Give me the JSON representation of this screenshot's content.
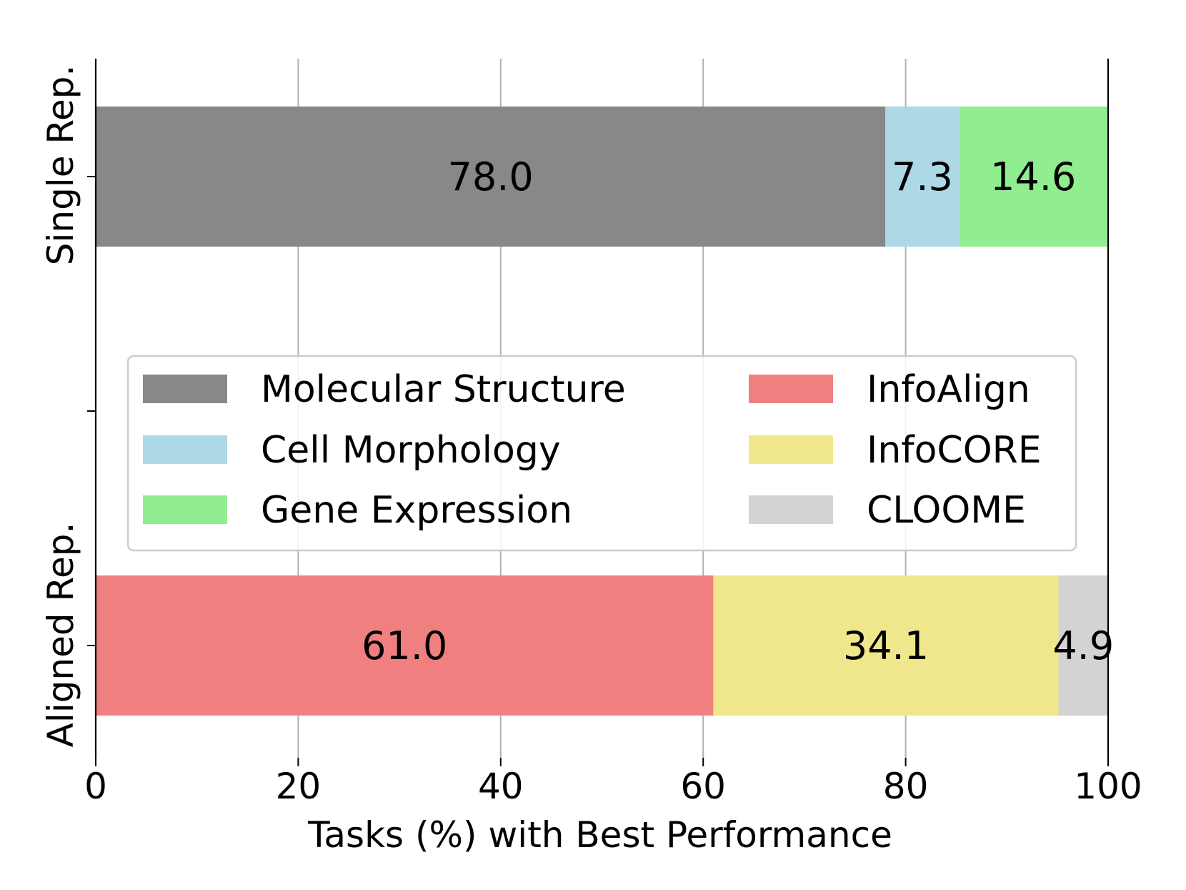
{
  "chart_data": {
    "type": "bar",
    "orientation": "horizontal",
    "stacked": true,
    "xlabel": "Tasks (%) with Best Performance",
    "ylabel": "",
    "xlim": [
      0,
      100
    ],
    "xticks": [
      0,
      20,
      40,
      60,
      80,
      100
    ],
    "grid": "x",
    "legend_position": "center",
    "categories": [
      "Single Rep.",
      "Aligned Rep."
    ],
    "series": [
      {
        "name": "Molecular Structure",
        "color": "#888888",
        "values": [
          78.0,
          null
        ]
      },
      {
        "name": "Cell Morphology",
        "color": "#ADD8E6",
        "values": [
          7.3,
          null
        ]
      },
      {
        "name": "Gene Expression",
        "color": "#90EE90",
        "values": [
          14.6,
          null
        ]
      },
      {
        "name": "InfoAlign",
        "color": "#F08080",
        "values": [
          null,
          61.0
        ]
      },
      {
        "name": "InfoCORE",
        "color": "#F0E68C",
        "values": [
          null,
          34.1
        ]
      },
      {
        "name": "CLOOME",
        "color": "#D3D3D3",
        "values": [
          null,
          4.9
        ]
      }
    ]
  }
}
